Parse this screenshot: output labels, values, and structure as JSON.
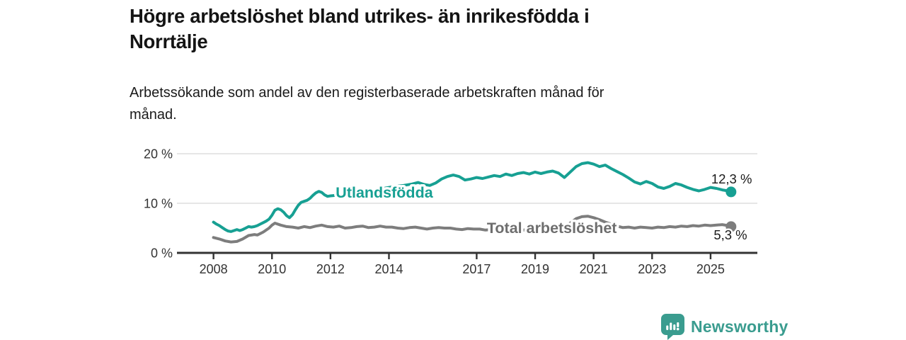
{
  "header": {
    "title_lines": [
      "Högre arbetslöshet bland utrikes- än inrikesfödda i",
      "Norrtälje"
    ],
    "subtitle_lines": [
      "Arbetssökande som andel av den registerbaserade arbetskraften månad för",
      "månad."
    ]
  },
  "chart_data": {
    "type": "line",
    "title": "Högre arbetslöshet bland utrikes- än inrikesfödda i Norrtälje",
    "subtitle": "Arbetssökande som andel av den registerbaserade arbetskraften månad för månad.",
    "unit": "%",
    "xlim": [
      2006.75,
      2026.6
    ],
    "ylim": [
      0,
      20
    ],
    "grid": "horizontal",
    "legend_position": "inline-labels",
    "axis_color": "#333333",
    "grid_color": "#d8d8d8",
    "yticks": [
      {
        "value": 0,
        "label": "0 %"
      },
      {
        "value": 10,
        "label": "10 %"
      },
      {
        "value": 20,
        "label": "20 %"
      }
    ],
    "xticks": [
      {
        "value": 2008,
        "label": "2008"
      },
      {
        "value": 2010,
        "label": "2010"
      },
      {
        "value": 2012,
        "label": "2012"
      },
      {
        "value": 2014,
        "label": "2014"
      },
      {
        "value": 2017,
        "label": "2017"
      },
      {
        "value": 2019,
        "label": "2019"
      },
      {
        "value": 2021,
        "label": "2021"
      },
      {
        "value": 2023,
        "label": "2023"
      },
      {
        "value": 2025,
        "label": "2025"
      }
    ],
    "series": [
      {
        "id": "total-arbetsloshet",
        "name": "Total arbetslöshet",
        "color": "#7d7d7d",
        "label_color": "#6e6e6e",
        "label": {
          "text": "Total arbetslöshet",
          "x": 2017.35,
          "y": 4.0
        },
        "end_label": {
          "text": "5,3 %",
          "x": 2025.68,
          "y": 2.7
        },
        "end_value": 5.3,
        "points": [
          [
            2008.0,
            3.1
          ],
          [
            2008.2,
            2.8
          ],
          [
            2008.4,
            2.4
          ],
          [
            2008.6,
            2.2
          ],
          [
            2008.8,
            2.3
          ],
          [
            2009.0,
            2.8
          ],
          [
            2009.2,
            3.5
          ],
          [
            2009.4,
            3.7
          ],
          [
            2009.5,
            3.6
          ],
          [
            2009.7,
            4.2
          ],
          [
            2009.9,
            5.0
          ],
          [
            2010.0,
            5.6
          ],
          [
            2010.1,
            6.0
          ],
          [
            2010.3,
            5.6
          ],
          [
            2010.5,
            5.3
          ],
          [
            2010.7,
            5.2
          ],
          [
            2010.9,
            5.0
          ],
          [
            2011.1,
            5.3
          ],
          [
            2011.3,
            5.1
          ],
          [
            2011.5,
            5.4
          ],
          [
            2011.7,
            5.6
          ],
          [
            2011.9,
            5.3
          ],
          [
            2012.1,
            5.2
          ],
          [
            2012.3,
            5.4
          ],
          [
            2012.5,
            5.0
          ],
          [
            2012.7,
            5.1
          ],
          [
            2012.9,
            5.3
          ],
          [
            2013.1,
            5.4
          ],
          [
            2013.3,
            5.1
          ],
          [
            2013.5,
            5.2
          ],
          [
            2013.7,
            5.4
          ],
          [
            2013.9,
            5.2
          ],
          [
            2014.1,
            5.2
          ],
          [
            2014.3,
            5.0
          ],
          [
            2014.5,
            4.9
          ],
          [
            2014.7,
            5.1
          ],
          [
            2014.9,
            5.2
          ],
          [
            2015.1,
            5.0
          ],
          [
            2015.3,
            4.8
          ],
          [
            2015.5,
            5.0
          ],
          [
            2015.7,
            5.1
          ],
          [
            2015.9,
            5.0
          ],
          [
            2016.1,
            5.0
          ],
          [
            2016.3,
            4.8
          ],
          [
            2016.5,
            4.7
          ],
          [
            2016.7,
            4.9
          ],
          [
            2016.9,
            4.8
          ],
          [
            2017.1,
            4.8
          ],
          [
            2017.3,
            4.6
          ],
          [
            2017.5,
            4.7
          ],
          [
            2017.8,
            4.8
          ],
          [
            2018.0,
            4.9
          ],
          [
            2018.3,
            4.7
          ],
          [
            2018.6,
            4.6
          ],
          [
            2018.9,
            4.7
          ],
          [
            2019.2,
            4.6
          ],
          [
            2019.5,
            4.7
          ],
          [
            2019.8,
            4.9
          ],
          [
            2020.0,
            5.1
          ],
          [
            2020.2,
            6.0
          ],
          [
            2020.4,
            6.9
          ],
          [
            2020.6,
            7.3
          ],
          [
            2020.8,
            7.4
          ],
          [
            2021.0,
            7.1
          ],
          [
            2021.2,
            6.7
          ],
          [
            2021.4,
            6.2
          ],
          [
            2021.6,
            5.8
          ],
          [
            2021.8,
            5.4
          ],
          [
            2022.0,
            5.1
          ],
          [
            2022.2,
            5.2
          ],
          [
            2022.4,
            5.0
          ],
          [
            2022.6,
            5.2
          ],
          [
            2022.8,
            5.1
          ],
          [
            2023.0,
            5.0
          ],
          [
            2023.2,
            5.2
          ],
          [
            2023.4,
            5.1
          ],
          [
            2023.6,
            5.3
          ],
          [
            2023.8,
            5.2
          ],
          [
            2024.0,
            5.4
          ],
          [
            2024.2,
            5.3
          ],
          [
            2024.4,
            5.5
          ],
          [
            2024.6,
            5.4
          ],
          [
            2024.8,
            5.6
          ],
          [
            2025.0,
            5.5
          ],
          [
            2025.2,
            5.6
          ],
          [
            2025.4,
            5.7
          ],
          [
            2025.6,
            5.5
          ],
          [
            2025.7,
            5.3
          ]
        ]
      },
      {
        "id": "utlandsfodda",
        "name": "Utlandsfödda",
        "color": "#17a093",
        "label_color": "#17a093",
        "label": {
          "text": "Utlandsfödda",
          "x": 2012.18,
          "y": 11.15
        },
        "end_label": {
          "text": "12,3 %",
          "x": 2025.72,
          "y": 14.0
        },
        "end_value": 12.3,
        "points": [
          [
            2008.0,
            6.2
          ],
          [
            2008.1,
            5.8
          ],
          [
            2008.2,
            5.5
          ],
          [
            2008.3,
            5.1
          ],
          [
            2008.4,
            4.7
          ],
          [
            2008.5,
            4.4
          ],
          [
            2008.6,
            4.3
          ],
          [
            2008.7,
            4.5
          ],
          [
            2008.8,
            4.7
          ],
          [
            2008.9,
            4.5
          ],
          [
            2009.0,
            4.7
          ],
          [
            2009.1,
            5.0
          ],
          [
            2009.2,
            5.3
          ],
          [
            2009.3,
            5.2
          ],
          [
            2009.4,
            5.3
          ],
          [
            2009.5,
            5.5
          ],
          [
            2009.6,
            5.8
          ],
          [
            2009.7,
            6.1
          ],
          [
            2009.8,
            6.4
          ],
          [
            2009.9,
            6.8
          ],
          [
            2010.0,
            7.6
          ],
          [
            2010.1,
            8.6
          ],
          [
            2010.2,
            8.9
          ],
          [
            2010.3,
            8.7
          ],
          [
            2010.4,
            8.2
          ],
          [
            2010.5,
            7.5
          ],
          [
            2010.6,
            7.1
          ],
          [
            2010.7,
            7.7
          ],
          [
            2010.8,
            8.7
          ],
          [
            2010.9,
            9.6
          ],
          [
            2011.0,
            10.2
          ],
          [
            2011.1,
            10.4
          ],
          [
            2011.2,
            10.6
          ],
          [
            2011.3,
            11.0
          ],
          [
            2011.4,
            11.6
          ],
          [
            2011.5,
            12.1
          ],
          [
            2011.6,
            12.4
          ],
          [
            2011.7,
            12.2
          ],
          [
            2011.8,
            11.7
          ],
          [
            2011.9,
            11.4
          ],
          [
            2012.0,
            11.5
          ],
          [
            2012.2,
            11.6
          ],
          [
            2012.4,
            11.5
          ],
          [
            2012.6,
            11.8
          ],
          [
            2012.8,
            12.0
          ],
          [
            2013.0,
            12.3
          ],
          [
            2013.3,
            12.5
          ],
          [
            2013.6,
            12.8
          ],
          [
            2013.9,
            13.1
          ],
          [
            2014.2,
            13.4
          ],
          [
            2014.5,
            13.6
          ],
          [
            2014.8,
            13.9
          ],
          [
            2015.0,
            14.2
          ],
          [
            2015.2,
            13.8
          ],
          [
            2015.4,
            13.6
          ],
          [
            2015.6,
            14.1
          ],
          [
            2015.8,
            14.9
          ],
          [
            2016.0,
            15.4
          ],
          [
            2016.2,
            15.7
          ],
          [
            2016.4,
            15.4
          ],
          [
            2016.6,
            14.7
          ],
          [
            2016.8,
            14.9
          ],
          [
            2017.0,
            15.2
          ],
          [
            2017.2,
            15.0
          ],
          [
            2017.4,
            15.3
          ],
          [
            2017.6,
            15.6
          ],
          [
            2017.8,
            15.4
          ],
          [
            2018.0,
            15.9
          ],
          [
            2018.2,
            15.6
          ],
          [
            2018.4,
            16.0
          ],
          [
            2018.6,
            16.2
          ],
          [
            2018.8,
            15.9
          ],
          [
            2019.0,
            16.3
          ],
          [
            2019.2,
            16.0
          ],
          [
            2019.4,
            16.3
          ],
          [
            2019.6,
            16.5
          ],
          [
            2019.8,
            16.1
          ],
          [
            2020.0,
            15.2
          ],
          [
            2020.2,
            16.3
          ],
          [
            2020.4,
            17.4
          ],
          [
            2020.6,
            18.0
          ],
          [
            2020.8,
            18.2
          ],
          [
            2021.0,
            17.9
          ],
          [
            2021.2,
            17.4
          ],
          [
            2021.4,
            17.7
          ],
          [
            2021.6,
            17.0
          ],
          [
            2021.8,
            16.4
          ],
          [
            2022.0,
            15.8
          ],
          [
            2022.2,
            15.1
          ],
          [
            2022.4,
            14.3
          ],
          [
            2022.6,
            13.9
          ],
          [
            2022.8,
            14.4
          ],
          [
            2023.0,
            14.0
          ],
          [
            2023.2,
            13.3
          ],
          [
            2023.4,
            13.0
          ],
          [
            2023.6,
            13.4
          ],
          [
            2023.8,
            14.0
          ],
          [
            2024.0,
            13.7
          ],
          [
            2024.2,
            13.2
          ],
          [
            2024.4,
            12.8
          ],
          [
            2024.6,
            12.5
          ],
          [
            2024.8,
            12.8
          ],
          [
            2025.0,
            13.2
          ],
          [
            2025.2,
            13.0
          ],
          [
            2025.4,
            12.7
          ],
          [
            2025.6,
            12.5
          ],
          [
            2025.7,
            12.3
          ]
        ]
      }
    ]
  },
  "footer": {
    "brand": "Newsworthy",
    "brand_color": "#3a9c8f",
    "logo_icon": "bar-chart-speech-bubble-icon"
  }
}
